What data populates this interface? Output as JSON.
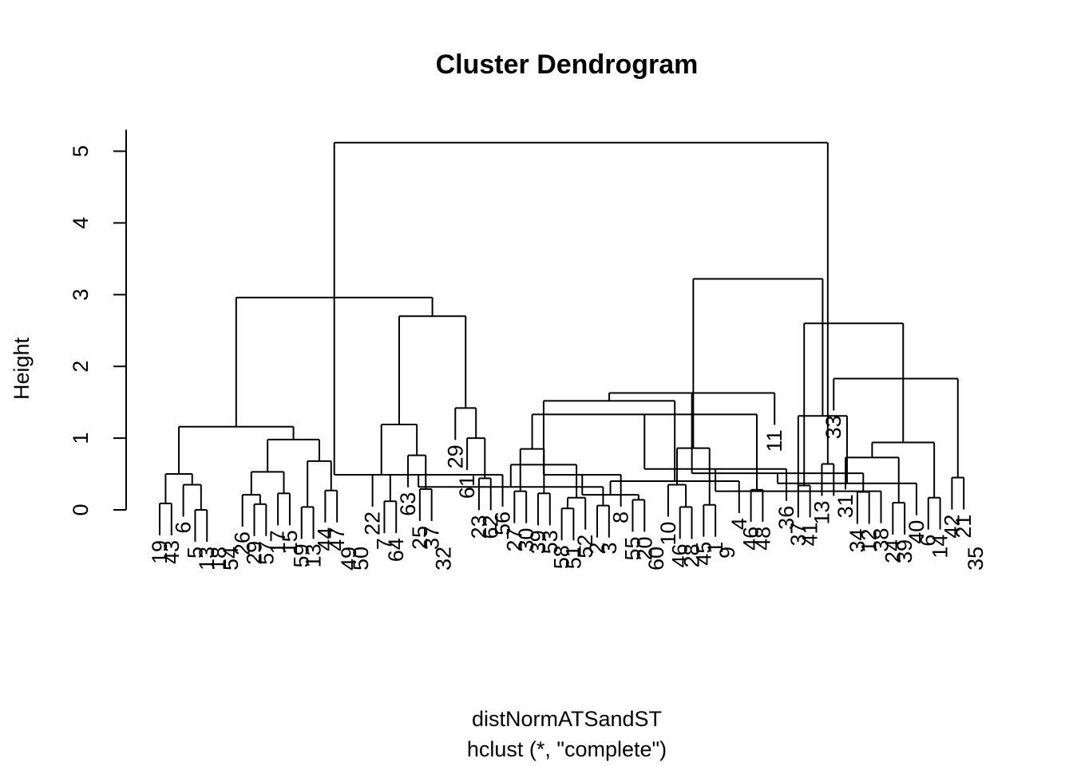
{
  "chart_data": {
    "type": "dendrogram",
    "title": "Cluster Dendrogram",
    "ylabel": "Height",
    "xlabel": "distNormATSandST",
    "subtitle": "hclust (*, \"complete\")",
    "ylim": [
      0,
      5.3
    ],
    "y_ticks": [
      0,
      1,
      2,
      3,
      4,
      5
    ],
    "leaves": [
      "19",
      "43",
      "6",
      "5",
      "13",
      "18",
      "54",
      "26",
      "29",
      "57",
      "17",
      "15",
      "59",
      "13",
      "44",
      "47",
      "49",
      "50",
      "22",
      "7",
      "64",
      "63",
      "25",
      "37",
      "32",
      "29",
      "61",
      "23",
      "62",
      "56",
      "27",
      "30",
      "39",
      "53",
      "58",
      "51",
      "52",
      "2",
      "3",
      "8",
      "55",
      "20",
      "60",
      "10",
      "46",
      "28",
      "45",
      "1",
      "9",
      "4",
      "46",
      "48",
      "11",
      "36",
      "37",
      "41",
      "13",
      "33",
      "31",
      "34",
      "12",
      "38",
      "24",
      "39",
      "40",
      "6",
      "14",
      "42",
      "21",
      "35"
    ],
    "merges": [
      [
        -1,
        -2,
        0.09
      ],
      [
        -4,
        -5,
        0.0
      ],
      [
        -3,
        1,
        0.35
      ],
      [
        0,
        2,
        0.5
      ],
      [
        -9,
        -10,
        0.08
      ],
      [
        -8,
        4,
        0.21
      ],
      [
        -11,
        -12,
        0.23
      ],
      [
        5,
        6,
        0.53
      ],
      [
        -13,
        -14,
        0.04
      ],
      [
        -15,
        -16,
        0.27
      ],
      [
        8,
        9,
        0.68
      ],
      [
        7,
        10,
        0.98
      ],
      [
        3,
        11,
        1.16
      ],
      [
        -20,
        -21,
        0.12
      ],
      [
        -19,
        13,
        0.49
      ],
      [
        -23,
        -24,
        0.29
      ],
      [
        -22,
        15,
        0.76
      ],
      [
        14,
        16,
        1.19
      ],
      [
        -28,
        -29,
        0.44
      ],
      [
        -27,
        18,
        1.0
      ],
      [
        -26,
        19,
        1.42
      ],
      [
        17,
        20,
        2.7
      ],
      [
        12,
        21,
        2.96
      ],
      [
        -31,
        -32,
        0.26
      ],
      [
        -30,
        22,
        0.49
      ],
      [
        -35,
        -36,
        0.02
      ],
      [
        -38,
        -39,
        0.06
      ],
      [
        -37,
        25,
        0.17
      ],
      [
        24,
        26,
        0.32
      ],
      [
        -33,
        -34,
        0.23
      ],
      [
        27,
        28,
        0.63
      ],
      [
        23,
        29,
        0.85
      ],
      [
        -41,
        -42,
        0.14
      ],
      [
        -40,
        30,
        0.49
      ],
      [
        -45,
        -46,
        0.04
      ],
      [
        -47,
        -48,
        0.07
      ],
      [
        32,
        33,
        0.21
      ],
      [
        -44,
        34,
        0.35
      ],
      [
        -51,
        -52,
        0.28
      ],
      [
        -50,
        36,
        0.4
      ],
      [
        35,
        37,
        0.86
      ],
      [
        31,
        38,
        1.33
      ],
      [
        30,
        39,
        1.52
      ],
      [
        -55,
        -56,
        0.34
      ],
      [
        -54,
        41,
        0.57
      ],
      [
        -53,
        42,
        1.63
      ],
      [
        -60,
        -61,
        0.25
      ],
      [
        -63,
        -64,
        0.1
      ],
      [
        -62,
        44,
        0.26
      ],
      [
        45,
        46,
        0.51
      ],
      [
        -59,
        47,
        0.73
      ],
      [
        -66,
        -67,
        0.17
      ],
      [
        -65,
        49,
        0.37
      ],
      [
        -68,
        -69,
        0.45
      ],
      [
        50,
        51,
        0.94
      ],
      [
        48,
        52,
        1.31
      ],
      [
        -57,
        -58,
        0.64
      ],
      [
        -58,
        53,
        1.83
      ],
      [
        43,
        54,
        2.6
      ],
      [
        40,
        55,
        3.22
      ],
      [
        22,
        56,
        5.12
      ]
    ]
  }
}
